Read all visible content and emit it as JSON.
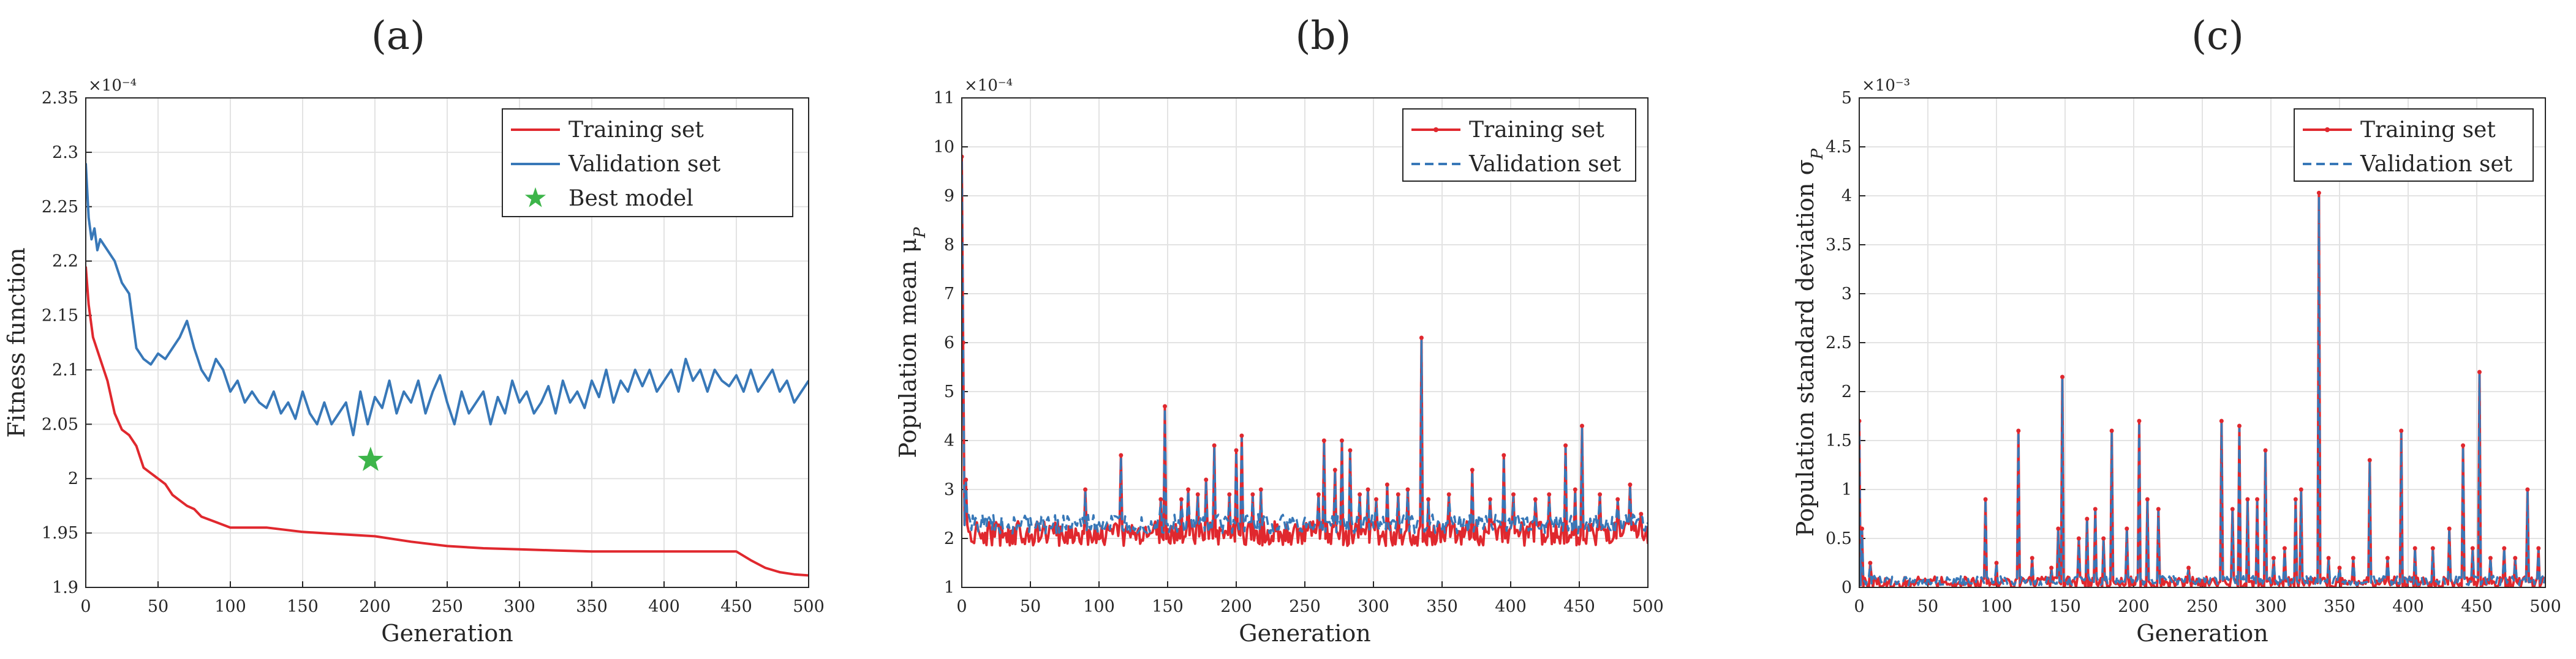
{
  "chart_data": [
    {
      "panel_label": "(a)",
      "type": "line",
      "xlabel": "Generation",
      "ylabel": "Fitness function",
      "exponent_label": "×10⁻⁴",
      "xlim": [
        0,
        500
      ],
      "ylim": [
        1.9,
        2.35
      ],
      "xticks": [
        0,
        50,
        100,
        150,
        200,
        250,
        300,
        350,
        400,
        450,
        500
      ],
      "yticks": [
        1.9,
        1.95,
        2.0,
        2.05,
        2.1,
        2.15,
        2.2,
        2.25,
        2.3,
        2.35
      ],
      "yticklabels": [
        "1.9",
        "1.95",
        "2",
        "2.05",
        "2.1",
        "2.15",
        "2.2",
        "2.25",
        "2.3",
        "2.35"
      ],
      "grid": true,
      "legend_position": "top-right",
      "series": [
        {
          "name": "Training set",
          "color": "#e0282e",
          "style": "solid",
          "x": [
            0,
            2,
            5,
            10,
            15,
            20,
            25,
            30,
            35,
            40,
            45,
            50,
            55,
            60,
            65,
            70,
            75,
            80,
            90,
            100,
            110,
            125,
            150,
            175,
            200,
            225,
            250,
            275,
            300,
            325,
            350,
            375,
            400,
            425,
            450,
            460,
            470,
            480,
            490,
            500
          ],
          "y": [
            2.195,
            2.16,
            2.13,
            2.11,
            2.09,
            2.06,
            2.045,
            2.04,
            2.03,
            2.01,
            2.005,
            2.0,
            1.995,
            1.985,
            1.98,
            1.975,
            1.972,
            1.965,
            1.96,
            1.955,
            1.955,
            1.955,
            1.951,
            1.949,
            1.947,
            1.942,
            1.938,
            1.936,
            1.935,
            1.934,
            1.933,
            1.933,
            1.933,
            1.933,
            1.933,
            1.925,
            1.918,
            1.914,
            1.912,
            1.911
          ]
        },
        {
          "name": "Validation set",
          "color": "#3878b8",
          "style": "solid",
          "x": [
            0,
            2,
            4,
            6,
            8,
            10,
            15,
            20,
            25,
            30,
            35,
            40,
            45,
            50,
            55,
            60,
            65,
            70,
            75,
            80,
            85,
            90,
            95,
            100,
            105,
            110,
            115,
            120,
            125,
            130,
            135,
            140,
            145,
            150,
            155,
            160,
            165,
            170,
            175,
            180,
            185,
            190,
            195,
            200,
            205,
            210,
            215,
            220,
            225,
            230,
            235,
            240,
            245,
            250,
            255,
            260,
            265,
            270,
            275,
            280,
            285,
            290,
            295,
            300,
            305,
            310,
            315,
            320,
            325,
            330,
            335,
            340,
            345,
            350,
            355,
            360,
            365,
            370,
            375,
            380,
            385,
            390,
            395,
            400,
            405,
            410,
            415,
            420,
            425,
            430,
            435,
            440,
            445,
            450,
            455,
            460,
            465,
            470,
            475,
            480,
            485,
            490,
            495,
            500
          ],
          "y": [
            2.29,
            2.24,
            2.22,
            2.23,
            2.21,
            2.22,
            2.21,
            2.2,
            2.18,
            2.17,
            2.12,
            2.11,
            2.105,
            2.115,
            2.11,
            2.12,
            2.13,
            2.145,
            2.12,
            2.1,
            2.09,
            2.11,
            2.1,
            2.08,
            2.09,
            2.07,
            2.08,
            2.07,
            2.065,
            2.08,
            2.06,
            2.07,
            2.055,
            2.08,
            2.06,
            2.05,
            2.07,
            2.05,
            2.06,
            2.07,
            2.04,
            2.08,
            2.05,
            2.075,
            2.065,
            2.09,
            2.06,
            2.08,
            2.07,
            2.09,
            2.06,
            2.08,
            2.095,
            2.07,
            2.05,
            2.08,
            2.06,
            2.07,
            2.08,
            2.05,
            2.075,
            2.06,
            2.09,
            2.07,
            2.08,
            2.06,
            2.07,
            2.085,
            2.06,
            2.09,
            2.07,
            2.08,
            2.065,
            2.09,
            2.075,
            2.1,
            2.07,
            2.09,
            2.08,
            2.1,
            2.085,
            2.1,
            2.08,
            2.09,
            2.1,
            2.08,
            2.11,
            2.09,
            2.1,
            2.08,
            2.1,
            2.09,
            2.085,
            2.095,
            2.08,
            2.1,
            2.08,
            2.09,
            2.1,
            2.08,
            2.09,
            2.07,
            2.08,
            2.09
          ]
        }
      ],
      "markers": [
        {
          "name": "Best model",
          "color": "#3db54a",
          "shape": "star",
          "x": 197,
          "y": 2.017
        }
      ]
    },
    {
      "panel_label": "(b)",
      "type": "line",
      "xlabel": "Generation",
      "ylabel": "Population mean μ",
      "ylabel_subscript": "P",
      "exponent_label": "×10⁻⁴",
      "xlim": [
        0,
        500
      ],
      "ylim": [
        1,
        11
      ],
      "xticks": [
        0,
        50,
        100,
        150,
        200,
        250,
        300,
        350,
        400,
        450,
        500
      ],
      "yticks": [
        1,
        2,
        3,
        4,
        5,
        6,
        7,
        8,
        9,
        10,
        11
      ],
      "grid": true,
      "legend_position": "top-right",
      "baseline": {
        "training": 2.1,
        "validation": 2.3
      },
      "spikes": [
        {
          "x": 0,
          "y": 9.8
        },
        {
          "x": 1,
          "y": 6.0
        },
        {
          "x": 3,
          "y": 3.2
        },
        {
          "x": 90,
          "y": 3.0
        },
        {
          "x": 116,
          "y": 3.7
        },
        {
          "x": 145,
          "y": 2.8
        },
        {
          "x": 148,
          "y": 4.7
        },
        {
          "x": 160,
          "y": 2.8
        },
        {
          "x": 165,
          "y": 3.0
        },
        {
          "x": 172,
          "y": 2.9
        },
        {
          "x": 178,
          "y": 3.2
        },
        {
          "x": 184,
          "y": 3.9
        },
        {
          "x": 195,
          "y": 2.9
        },
        {
          "x": 200,
          "y": 3.8
        },
        {
          "x": 204,
          "y": 4.1
        },
        {
          "x": 212,
          "y": 2.9
        },
        {
          "x": 218,
          "y": 3.0
        },
        {
          "x": 260,
          "y": 2.9
        },
        {
          "x": 264,
          "y": 4.0
        },
        {
          "x": 272,
          "y": 3.4
        },
        {
          "x": 277,
          "y": 4.0
        },
        {
          "x": 283,
          "y": 3.8
        },
        {
          "x": 290,
          "y": 2.9
        },
        {
          "x": 296,
          "y": 3.0
        },
        {
          "x": 302,
          "y": 2.8
        },
        {
          "x": 310,
          "y": 3.1
        },
        {
          "x": 318,
          "y": 2.9
        },
        {
          "x": 325,
          "y": 3.0
        },
        {
          "x": 335,
          "y": 6.1
        },
        {
          "x": 340,
          "y": 2.8
        },
        {
          "x": 355,
          "y": 2.9
        },
        {
          "x": 372,
          "y": 3.4
        },
        {
          "x": 385,
          "y": 2.8
        },
        {
          "x": 395,
          "y": 3.7
        },
        {
          "x": 402,
          "y": 2.9
        },
        {
          "x": 418,
          "y": 2.8
        },
        {
          "x": 428,
          "y": 2.9
        },
        {
          "x": 440,
          "y": 3.9
        },
        {
          "x": 447,
          "y": 3.0
        },
        {
          "x": 452,
          "y": 4.3
        },
        {
          "x": 465,
          "y": 2.9
        },
        {
          "x": 478,
          "y": 2.8
        },
        {
          "x": 487,
          "y": 3.1
        },
        {
          "x": 495,
          "y": 2.5
        }
      ],
      "series": [
        {
          "name": "Training set",
          "color": "#e0282e",
          "style": "solid-marker"
        },
        {
          "name": "Validation set",
          "color": "#3878b8",
          "style": "dashed"
        }
      ]
    },
    {
      "panel_label": "(c)",
      "type": "line",
      "xlabel": "Generation",
      "ylabel": "Population standard deviation σ",
      "ylabel_subscript": "P",
      "exponent_label": "×10⁻³",
      "xlim": [
        0,
        500
      ],
      "ylim": [
        0,
        5
      ],
      "xticks": [
        0,
        50,
        100,
        150,
        200,
        250,
        300,
        350,
        400,
        450,
        500
      ],
      "yticks": [
        0,
        0.5,
        1,
        1.5,
        2,
        2.5,
        3,
        3.5,
        4,
        4.5,
        5
      ],
      "grid": true,
      "legend_position": "top-right",
      "baseline": {
        "training": 0.05,
        "validation": 0.07
      },
      "spikes": [
        {
          "x": 0,
          "y": 1.7
        },
        {
          "x": 2,
          "y": 0.6
        },
        {
          "x": 8,
          "y": 0.25
        },
        {
          "x": 92,
          "y": 0.9
        },
        {
          "x": 100,
          "y": 0.25
        },
        {
          "x": 116,
          "y": 1.6
        },
        {
          "x": 126,
          "y": 0.3
        },
        {
          "x": 140,
          "y": 0.2
        },
        {
          "x": 145,
          "y": 0.6
        },
        {
          "x": 148,
          "y": 2.15
        },
        {
          "x": 160,
          "y": 0.5
        },
        {
          "x": 166,
          "y": 0.7
        },
        {
          "x": 172,
          "y": 0.8
        },
        {
          "x": 178,
          "y": 0.5
        },
        {
          "x": 184,
          "y": 1.6
        },
        {
          "x": 195,
          "y": 0.6
        },
        {
          "x": 204,
          "y": 1.7
        },
        {
          "x": 210,
          "y": 0.9
        },
        {
          "x": 218,
          "y": 0.8
        },
        {
          "x": 240,
          "y": 0.2
        },
        {
          "x": 264,
          "y": 1.7
        },
        {
          "x": 272,
          "y": 0.8
        },
        {
          "x": 277,
          "y": 1.65
        },
        {
          "x": 283,
          "y": 0.9
        },
        {
          "x": 290,
          "y": 0.9
        },
        {
          "x": 296,
          "y": 1.4
        },
        {
          "x": 302,
          "y": 0.3
        },
        {
          "x": 310,
          "y": 0.4
        },
        {
          "x": 318,
          "y": 0.9
        },
        {
          "x": 322,
          "y": 1.0
        },
        {
          "x": 335,
          "y": 4.03
        },
        {
          "x": 342,
          "y": 0.3
        },
        {
          "x": 350,
          "y": 0.2
        },
        {
          "x": 360,
          "y": 0.3
        },
        {
          "x": 372,
          "y": 1.3
        },
        {
          "x": 385,
          "y": 0.3
        },
        {
          "x": 395,
          "y": 1.6
        },
        {
          "x": 405,
          "y": 0.4
        },
        {
          "x": 418,
          "y": 0.4
        },
        {
          "x": 430,
          "y": 0.6
        },
        {
          "x": 440,
          "y": 1.45
        },
        {
          "x": 447,
          "y": 0.4
        },
        {
          "x": 452,
          "y": 2.2
        },
        {
          "x": 460,
          "y": 0.3
        },
        {
          "x": 470,
          "y": 0.4
        },
        {
          "x": 478,
          "y": 0.3
        },
        {
          "x": 487,
          "y": 1.0
        },
        {
          "x": 495,
          "y": 0.4
        }
      ],
      "series": [
        {
          "name": "Training set",
          "color": "#e0282e",
          "style": "solid-marker"
        },
        {
          "name": "Validation set",
          "color": "#3878b8",
          "style": "dashed"
        }
      ]
    }
  ]
}
